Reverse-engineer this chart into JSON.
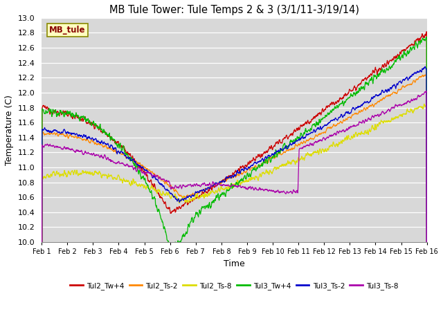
{
  "title": "MB Tule Tower: Tule Temps 2 & 3 (3/1/11-3/19/14)",
  "xlabel": "Time",
  "ylabel": "Temperature (C)",
  "ylim": [
    10.0,
    13.0
  ],
  "xlim": [
    0,
    15
  ],
  "yticks": [
    10.0,
    10.2,
    10.4,
    10.6,
    10.8,
    11.0,
    11.2,
    11.4,
    11.6,
    11.8,
    12.0,
    12.2,
    12.4,
    12.6,
    12.8,
    13.0
  ],
  "xtick_labels": [
    "Feb 1",
    "Feb 2",
    "Feb 3",
    "Feb 4",
    "Feb 5",
    "Feb 6",
    "Feb 7",
    "Feb 8",
    "Feb 9",
    "Feb 10",
    "Feb 11",
    "Feb 12",
    "Feb 13",
    "Feb 14",
    "Feb 15",
    "Feb 16"
  ],
  "series_colors": [
    "#cc0000",
    "#ff8800",
    "#dddd00",
    "#00bb00",
    "#0000cc",
    "#aa00aa"
  ],
  "series_names": [
    "Tul2_Tw+4",
    "Tul2_Ts-2",
    "Tul2_Ts-8",
    "Tul3_Tw+4",
    "Tul3_Ts-2",
    "Tul3_Ts-8"
  ],
  "bg_color": "#d8d8d8",
  "box_label": "MB_tule",
  "box_facecolor": "#ffffc0",
  "box_edgecolor": "#888800",
  "box_textcolor": "#880000",
  "figsize": [
    6.4,
    4.8
  ],
  "dpi": 100
}
